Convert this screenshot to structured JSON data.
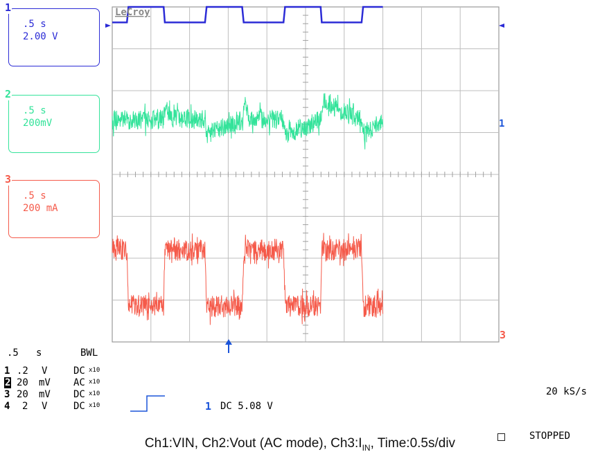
{
  "colors": {
    "ch1": "#2b2bd6",
    "ch2": "#33e39a",
    "ch3": "#f55a4a",
    "grid": "#999999",
    "trigger": "#1a53d9"
  },
  "channels": [
    {
      "num": "1",
      "timebase": ".5 s",
      "scale": "2.00 V"
    },
    {
      "num": "2",
      "timebase": ".5 s",
      "scale": "200mV"
    },
    {
      "num": "3",
      "timebase": ".5 s",
      "scale": "200 mA"
    }
  ],
  "brand": "LeCroy",
  "right_markers": {
    "ch2": "1",
    "ch3": "3"
  },
  "bottom": {
    "timebase": ".5",
    "timebase_unit": "s",
    "bwl": "BWL",
    "rows": [
      {
        "ch": "1",
        "volt": ".2",
        "unit": "V",
        "coupling": "DC",
        "probe": "x10"
      },
      {
        "ch": "2",
        "volt": "20",
        "unit": "mV",
        "coupling": "AC",
        "probe": "x10"
      },
      {
        "ch": "3",
        "volt": "20",
        "unit": "mV",
        "coupling": "DC",
        "probe": "x10"
      },
      {
        "ch": "4",
        "volt": "2",
        "unit": "V",
        "coupling": "DC",
        "probe": "x10"
      }
    ],
    "trigger_channel": "1",
    "trigger_text": "DC 5.08 V",
    "sample_rate": "20 kS/s",
    "status": "STOPPED"
  },
  "caption": {
    "part1": "Ch1:VIN, Ch2:Vout (AC mode), Ch3:I",
    "sub": "IN",
    "part2": ", Time:0.5s/div"
  },
  "chart_data": {
    "type": "line",
    "x_unit": "div",
    "xlim": [
      0,
      10
    ],
    "ylim": [
      0,
      8
    ],
    "grid": true,
    "series": [
      {
        "name": "Ch1",
        "x": [
          0,
          0.38,
          0.42,
          1.33,
          1.36,
          2.4,
          2.44,
          3.36,
          3.4,
          4.43,
          4.47,
          5.39,
          5.42,
          6.45,
          6.49,
          7.0
        ],
        "values": [
          7.63,
          7.63,
          8.0,
          8.0,
          7.63,
          7.63,
          8.0,
          8.0,
          7.63,
          7.63,
          8.0,
          8.0,
          7.63,
          7.63,
          8.0,
          8.0
        ]
      },
      {
        "name": "Ch2",
        "x": [
          0,
          1.33,
          1.38,
          1.5,
          2.4,
          2.45,
          3.36,
          3.42,
          3.55,
          4.43,
          4.48,
          5.39,
          5.44,
          6.45,
          6.5,
          7.0
        ],
        "values": [
          5.3,
          5.3,
          5.75,
          5.35,
          5.3,
          4.95,
          5.3,
          5.8,
          5.35,
          5.3,
          4.95,
          5.3,
          5.75,
          5.3,
          4.9,
          5.3
        ]
      },
      {
        "name": "Ch3",
        "x": [
          0,
          0.38,
          0.42,
          1.33,
          1.36,
          2.4,
          2.44,
          3.36,
          3.4,
          4.43,
          4.47,
          5.39,
          5.42,
          6.45,
          6.49,
          7.0
        ],
        "values": [
          2.2,
          2.2,
          0.85,
          0.85,
          2.2,
          2.2,
          0.85,
          0.85,
          2.2,
          2.2,
          0.85,
          0.85,
          2.2,
          2.2,
          0.85,
          0.85
        ]
      }
    ]
  }
}
